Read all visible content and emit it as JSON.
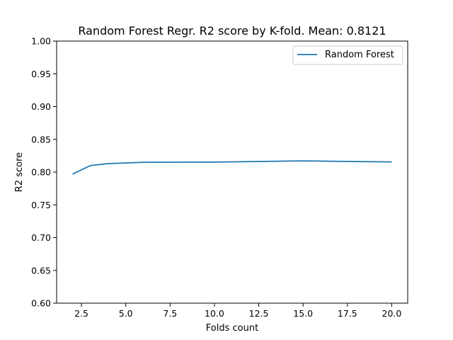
{
  "chart_data": {
    "type": "line",
    "title": "Random Forest Regr. R2 score by K-fold. Mean: 0.8121",
    "xlabel": "Folds count",
    "ylabel": "R2 score",
    "xlim": [
      1.1,
      20.9
    ],
    "ylim": [
      0.6,
      1.0
    ],
    "x_ticks": [
      2.5,
      5.0,
      7.5,
      10.0,
      12.5,
      15.0,
      17.5,
      20.0
    ],
    "x_tick_labels": [
      "2.5",
      "5.0",
      "7.5",
      "10.0",
      "12.5",
      "15.0",
      "17.5",
      "20.0"
    ],
    "y_ticks": [
      0.6,
      0.65,
      0.7,
      0.75,
      0.8,
      0.85,
      0.9,
      0.95,
      1.0
    ],
    "y_tick_labels": [
      "0.60",
      "0.65",
      "0.70",
      "0.75",
      "0.80",
      "0.85",
      "0.90",
      "0.95",
      "1.00"
    ],
    "grid": false,
    "legend_position": "top-right",
    "series": [
      {
        "name": "Random Forest",
        "color": "#1f77b4",
        "x": [
          2,
          3,
          4,
          6,
          10,
          15,
          20
        ],
        "y": [
          0.797,
          0.81,
          0.813,
          0.815,
          0.8153,
          0.8172,
          0.8155
        ]
      }
    ]
  }
}
